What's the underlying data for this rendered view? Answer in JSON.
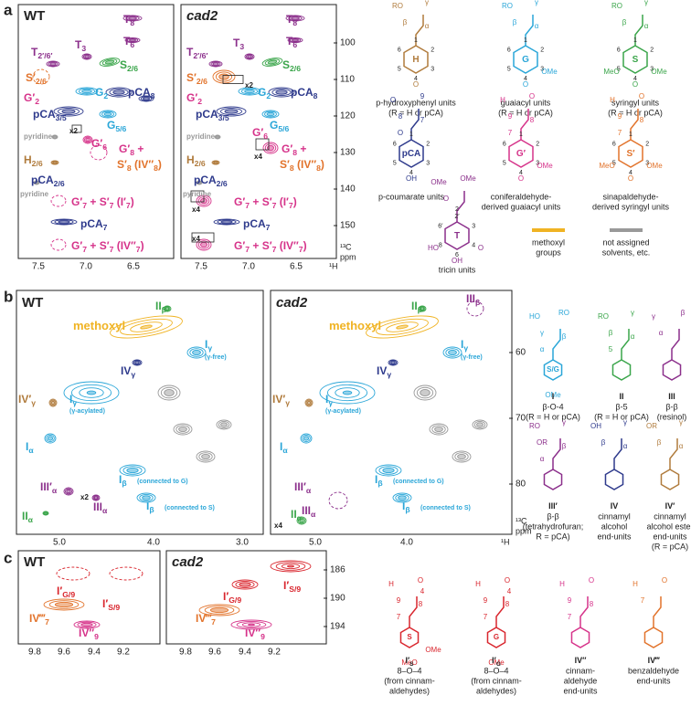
{
  "a": {
    "label": "a",
    "spectra": [
      {
        "title": "WT",
        "peaks": [
          [
            "T",
            "8"
          ],
          [
            "T",
            "6"
          ],
          [
            "T",
            "2′/6′"
          ],
          [
            "T",
            "3"
          ],
          [
            "S",
            "2/6"
          ],
          [
            "S′",
            "2/6"
          ],
          [
            "G′",
            "2"
          ],
          [
            "G",
            "2"
          ],
          [
            "pCA",
            "8"
          ],
          [
            "pCA",
            "3/5"
          ],
          [
            "G",
            "5/6"
          ],
          "pyridine",
          "x2",
          [
            "G′",
            "6"
          ],
          [
            "G′",
            "8",
            " +"
          ],
          [
            "S′",
            "8",
            " (IV″",
            "8",
            ")"
          ],
          [
            "H",
            "2/6"
          ],
          [
            "pCA",
            "2/6"
          ],
          "pyridine",
          [
            "G′",
            "7",
            " + S′",
            "7",
            " (I′",
            "7",
            ")"
          ],
          [
            "pCA",
            "7"
          ],
          [
            "G′",
            "7",
            " + S′",
            "7",
            " (IV″",
            "7",
            ")"
          ]
        ]
      },
      {
        "title": "cad2",
        "peaks": [
          [
            "T",
            "8"
          ],
          [
            "T",
            "6"
          ],
          [
            "T",
            "2′/6′"
          ],
          [
            "T",
            "3"
          ],
          [
            "S",
            "2/6"
          ],
          [
            "S′",
            "2/6"
          ],
          "x2",
          [
            "G′",
            "2"
          ],
          [
            "G",
            "2"
          ],
          [
            "pCA",
            "8"
          ],
          [
            "pCA",
            "3/5"
          ],
          [
            "G",
            "5/6"
          ],
          "pyridine",
          [
            "G′",
            "6"
          ],
          [
            "G′",
            "8",
            " +"
          ],
          "x4",
          [
            "S′",
            "8",
            " (IV″",
            "8",
            ")"
          ],
          [
            "H",
            "2/6"
          ],
          [
            "pCA",
            "2/6"
          ],
          "pyridine",
          [
            "G′",
            "7",
            " + S′",
            "7",
            " (I′",
            "7",
            ")"
          ],
          "x4",
          [
            "pCA",
            "7"
          ],
          "x4",
          [
            "G′",
            "7",
            " + S′",
            "7",
            " (IV″",
            "7",
            ")"
          ]
        ]
      }
    ],
    "yticks": [
      "100",
      "110",
      "120",
      "130",
      "140",
      "150"
    ],
    "yunit": [
      "¹³C",
      "ppm"
    ],
    "xticks": [
      "7.5",
      "7.0",
      "6.5"
    ],
    "xunit": "¹H",
    "structures": [
      {
        "ring": "H",
        "side": [
          "RO",
          "γ",
          "β",
          "α"
        ],
        "nums": [
          "1",
          "2",
          "3",
          "4",
          "5",
          "6"
        ],
        "subs": [
          "O"
        ],
        "caption": [
          "p-hydroxyphenyl units",
          "(R = H or pCA)"
        ]
      },
      {
        "ring": "G",
        "side": [
          "RO",
          "γ",
          "β",
          "α"
        ],
        "nums": [
          "1",
          "2",
          "3",
          "4",
          "5",
          "6"
        ],
        "subs": [
          "O",
          "OMe"
        ],
        "caption": [
          "guaiacyl units",
          "(R = H or pCA)"
        ]
      },
      {
        "ring": "S",
        "side": [
          "RO",
          "γ",
          "β",
          "α"
        ],
        "nums": [
          "1",
          "2",
          "3",
          "4",
          "5",
          "6"
        ],
        "subs": [
          "O",
          "OMe",
          "MeO"
        ],
        "caption": [
          "syringyl units",
          "(R = H or pCA)"
        ]
      },
      {
        "ring": "pCA",
        "side": [
          "O",
          "9",
          "8",
          "7",
          "O"
        ],
        "nums": [
          "1",
          "2",
          "3",
          "4",
          "5",
          "6"
        ],
        "subs": [
          "OH"
        ],
        "caption": [
          "p-coumarate units"
        ]
      },
      {
        "ring": "G′",
        "side": [
          "H",
          "O",
          "9",
          "8",
          "7"
        ],
        "nums": [
          "1",
          "2",
          "3",
          "4",
          "5",
          "6"
        ],
        "subs": [
          "O",
          "OMe"
        ],
        "caption": [
          "coniferaldehyde-",
          "derived guaiacyl units"
        ]
      },
      {
        "ring": "S′",
        "side": [
          "H",
          "O",
          "9",
          "8",
          "7"
        ],
        "nums": [
          "1",
          "2",
          "3",
          "4",
          "5",
          "6"
        ],
        "subs": [
          "O",
          "OMe",
          "MeO"
        ],
        "caption": [
          "sinapaldehyde-",
          "derived syringyl units"
        ]
      },
      {
        "ring": "T",
        "side": [
          "OMe",
          "OMe",
          "O"
        ],
        "nums": [
          "2′",
          "3",
          "4",
          "6",
          "8",
          "6′",
          "2"
        ],
        "subs": [
          "OH",
          "O",
          "HO"
        ],
        "caption": [
          "tricin units"
        ]
      }
    ],
    "legend": [
      [
        "methoxyl",
        "groups"
      ],
      [
        "not assigned",
        "solvents, etc."
      ]
    ]
  },
  "b": {
    "label": "b",
    "spectra": [
      {
        "title": "WT",
        "peaks": [
          [
            "II",
            "β"
          ],
          "methoxyl",
          [
            "I",
            "γ"
          ],
          "(γ-free)",
          [
            "IV",
            "γ"
          ],
          [
            "IV′",
            "γ"
          ],
          [
            "I",
            "γ"
          ],
          "(γ-acylated)",
          [
            "I",
            "α"
          ],
          [
            "III′",
            "α"
          ],
          "x2",
          [
            "III",
            "α"
          ],
          [
            "I",
            "β"
          ],
          "(connected to G)",
          [
            "I",
            "β"
          ],
          "(connected to S)",
          [
            "II",
            "α"
          ]
        ]
      },
      {
        "title": "cad2",
        "peaks": [
          [
            "II",
            "β"
          ],
          [
            "III",
            "β"
          ],
          "methoxyl",
          [
            "I",
            "γ"
          ],
          "(γ-free)",
          [
            "IV",
            "γ"
          ],
          [
            "IV′",
            "γ"
          ],
          [
            "I",
            "γ"
          ],
          "(γ-acylated)",
          [
            "I",
            "α"
          ],
          [
            "III′",
            "α"
          ],
          [
            "III",
            "α"
          ],
          [
            "I",
            "β"
          ],
          "(connected to G)",
          [
            "I",
            "β"
          ],
          "(connected to S)",
          "x4",
          [
            "II",
            "α"
          ]
        ]
      }
    ],
    "yticks": [
      "60",
      "70",
      "80"
    ],
    "yunit": [
      "¹³C",
      "ppm"
    ],
    "xticks": [
      "5.0",
      "4.0",
      "3.0"
    ],
    "xunit": "¹H",
    "structures": [
      {
        "id": "I",
        "ring": "S/G",
        "side": [
          "HO",
          "RO",
          "γ",
          "β",
          "α"
        ],
        "subs": [
          "OMe"
        ],
        "caption": [
          "β-O-4",
          "(R = H or pCA)"
        ]
      },
      {
        "id": "II",
        "side": [
          "RO",
          "γ",
          "β",
          "α",
          "5"
        ],
        "subs": [],
        "caption": [
          "β-5",
          "(R = H or pCA)"
        ]
      },
      {
        "id": "III",
        "side": [
          "γ",
          "β",
          "α"
        ],
        "subs": [],
        "caption": [
          "β-β",
          "(resinol)"
        ]
      },
      {
        "id": "III′",
        "side": [
          "RO",
          "γ",
          "OR",
          "β",
          "α"
        ],
        "subs": [],
        "caption": [
          "β-β",
          "(tetrahydrofuran;",
          "R = pCA)"
        ]
      },
      {
        "id": "IV",
        "side": [
          "OH",
          "γ",
          "β",
          "α"
        ],
        "subs": [],
        "caption": [
          "cinnamyl",
          "alcohol",
          "end-units"
        ]
      },
      {
        "id": "IV′",
        "side": [
          "OR",
          "γ",
          "β",
          "α"
        ],
        "subs": [],
        "caption": [
          "cinnamyl",
          "alcohol ester",
          "end-units",
          "(R = pCA)"
        ]
      }
    ]
  },
  "c": {
    "label": "c",
    "spectra": [
      {
        "title": "WT",
        "peaks": [
          [
            "I′",
            "G/9"
          ],
          [
            "I′",
            "S/9"
          ],
          [
            "IV‴",
            "7"
          ],
          [
            "IV″",
            "9"
          ]
        ]
      },
      {
        "title": "cad2",
        "peaks": [
          [
            "I′",
            "S/9"
          ],
          [
            "I′",
            "G/9"
          ],
          [
            "IV‴",
            "7"
          ],
          [
            "IV″",
            "9"
          ]
        ]
      }
    ],
    "yticks": [
      "186",
      "190",
      "194"
    ],
    "xticks": [
      "9.8",
      "9.6",
      "9.4",
      "9.2"
    ],
    "structures": [
      {
        "id": [
          "I′",
          "S"
        ],
        "ring": "S",
        "side": [
          "H",
          "O",
          "9",
          "8",
          "7",
          "4"
        ],
        "subs": [
          "MeO",
          "OMe"
        ],
        "caption": [
          "8–O–4",
          "(from cinnam-",
          "aldehydes)"
        ]
      },
      {
        "id": [
          "I′",
          "G"
        ],
        "ring": "G",
        "side": [
          "H",
          "O",
          "9",
          "8",
          "7",
          "4"
        ],
        "subs": [
          "OMe"
        ],
        "caption": [
          "8–O–4",
          "(from cinnam-",
          "aldehydes)"
        ]
      },
      {
        "id": "IV″",
        "side": [
          "H",
          "O",
          "9",
          "8",
          "7"
        ],
        "subs": [],
        "caption": [
          "cinnam-",
          "aldehyde",
          "end-units"
        ]
      },
      {
        "id": "IV‴",
        "side": [
          "H",
          "O",
          "7"
        ],
        "subs": [],
        "caption": [
          "benzaldehyde",
          "end-units"
        ]
      }
    ]
  }
}
